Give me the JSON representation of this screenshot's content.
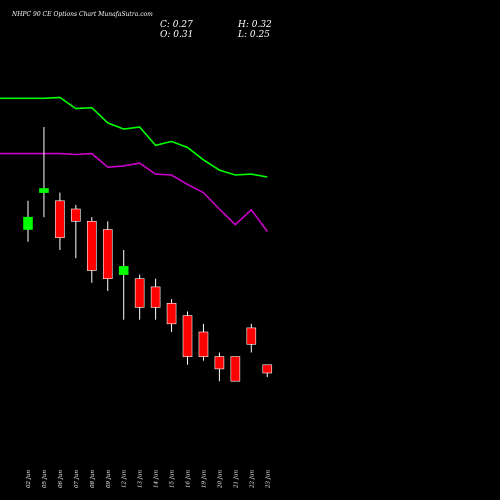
{
  "header": {
    "title": "NHPC 90  CE Options  Chart MunafaSutra.com",
    "c_label": "C: 0.27",
    "h_label": "H: 0.32",
    "o_label": "O: 0.31",
    "l_label": "L: 0.25"
  },
  "colors": {
    "background": "#000000",
    "bull": "#00ff00",
    "bear": "#ff0000",
    "wick": "#ffffff",
    "ma_upper": "#00ff00",
    "ma_lower": "#cc00cc"
  },
  "chart_data": {
    "type": "candlestick",
    "title": "NHPC 90  CE Options  Chart MunafaSutra.com",
    "x_labels": [
      "02 Jun",
      "05 Jun",
      "06 Jun",
      "07 Jun",
      "08 Jun",
      "09 Jun",
      "12 Jun",
      "13 Jun",
      "14 Jun",
      "15 Jun",
      "16 Jun",
      "19 Jun",
      "20 Jun",
      "21 Jun",
      "22 Jun",
      "23 Jun"
    ],
    "candles": [
      {
        "open": 0.55,
        "high": 0.62,
        "low": 0.52,
        "close": 0.58,
        "color": "green"
      },
      {
        "open": 0.64,
        "high": 0.8,
        "low": 0.58,
        "close": 0.65,
        "color": "green"
      },
      {
        "open": 0.62,
        "high": 0.64,
        "low": 0.5,
        "close": 0.53,
        "color": "red"
      },
      {
        "open": 0.6,
        "high": 0.61,
        "low": 0.48,
        "close": 0.57,
        "color": "red"
      },
      {
        "open": 0.57,
        "high": 0.58,
        "low": 0.42,
        "close": 0.45,
        "color": "red"
      },
      {
        "open": 0.55,
        "high": 0.57,
        "low": 0.4,
        "close": 0.43,
        "color": "red"
      },
      {
        "open": 0.44,
        "high": 0.5,
        "low": 0.33,
        "close": 0.46,
        "color": "green"
      },
      {
        "open": 0.43,
        "high": 0.44,
        "low": 0.33,
        "close": 0.36,
        "color": "red"
      },
      {
        "open": 0.41,
        "high": 0.43,
        "low": 0.33,
        "close": 0.36,
        "color": "red"
      },
      {
        "open": 0.37,
        "high": 0.38,
        "low": 0.3,
        "close": 0.32,
        "color": "red"
      },
      {
        "open": 0.34,
        "high": 0.35,
        "low": 0.22,
        "close": 0.24,
        "color": "red"
      },
      {
        "open": 0.3,
        "high": 0.32,
        "low": 0.23,
        "close": 0.24,
        "color": "red"
      },
      {
        "open": 0.24,
        "high": 0.25,
        "low": 0.18,
        "close": 0.21,
        "color": "red"
      },
      {
        "open": 0.24,
        "high": 0.24,
        "low": 0.18,
        "close": 0.18,
        "color": "red"
      },
      {
        "open": 0.31,
        "high": 0.32,
        "low": 0.25,
        "close": 0.27,
        "color": "red"
      },
      {
        "open": 0.22,
        "high": 0.22,
        "low": 0.19,
        "close": 0.2,
        "color": "red"
      }
    ],
    "lines": [
      {
        "color": "#00ff00",
        "values": [
          0.87,
          0.87,
          0.872,
          0.845,
          0.847,
          0.81,
          0.795,
          0.8,
          0.755,
          0.765,
          0.75,
          0.72,
          0.695,
          0.683,
          0.685,
          0.678
        ]
      },
      {
        "color": "#cc00cc",
        "values": [
          0.735,
          0.735,
          0.735,
          0.733,
          0.735,
          0.702,
          0.705,
          0.712,
          0.685,
          0.683,
          0.66,
          0.64,
          0.6,
          0.562,
          0.598,
          0.545
        ]
      }
    ],
    "xlabel": "",
    "ylabel": "",
    "ylim": [
      0.0,
      1.0
    ],
    "grid": false,
    "legend": "none"
  }
}
